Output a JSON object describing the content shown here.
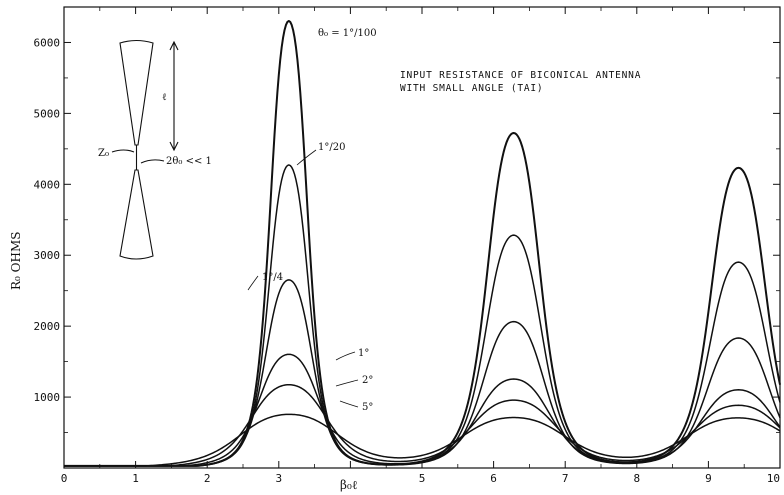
{
  "chart_data": {
    "type": "line",
    "title_line1": "INPUT  RESISTANCE  OF  BICONICAL  ANTENNA",
    "title_line2": "WITH  SMALL  ANGLE  (TAI)",
    "xlabel": "β₀ℓ",
    "ylabel": "R₀  OHMS",
    "xlim": [
      0,
      10
    ],
    "ylim": [
      0,
      6500
    ],
    "x_ticks": [
      "0",
      "1",
      "2",
      "3",
      "4",
      "5",
      "6",
      "7",
      "8",
      "9",
      "10"
    ],
    "y_ticks": [
      "1000",
      "2000",
      "3000",
      "4000",
      "5000",
      "6000"
    ],
    "grid": false,
    "series": [
      {
        "name": "θ₀ = 1°/100",
        "peaks": [
          6300,
          4720,
          4230
        ],
        "widths": [
          0.33,
          0.47,
          0.49
        ],
        "base": 60,
        "plateau": 0
      },
      {
        "name": "1°/20",
        "peaks": [
          4270,
          3280,
          2900
        ],
        "widths": [
          0.36,
          0.5,
          0.52
        ],
        "base": 60,
        "plateau": 0
      },
      {
        "name": "1°/4",
        "peaks": [
          2650,
          2060,
          1830
        ],
        "widths": [
          0.42,
          0.55,
          0.57
        ],
        "base": 60,
        "plateau": 0
      },
      {
        "name": "1°",
        "peaks": [
          1600,
          1250,
          1100
        ],
        "widths": [
          0.54,
          0.66,
          0.68
        ],
        "base": 60,
        "plateau": 0
      },
      {
        "name": "2°",
        "peaks": [
          1170,
          950,
          880
        ],
        "widths": [
          0.68,
          0.78,
          0.8
        ],
        "base": 60,
        "plateau": 0
      },
      {
        "name": "5°",
        "peaks": [
          750,
          700,
          700
        ],
        "widths": [
          0.9,
          0.95,
          0.95
        ],
        "base": 60,
        "plateau": 0
      }
    ],
    "peak_x": [
      3.14,
      6.28,
      9.42
    ],
    "annotations": {
      "inset_length": "ℓ",
      "inset_z0": "Z₀",
      "inset_angle": "2θ₀ << 1"
    }
  }
}
